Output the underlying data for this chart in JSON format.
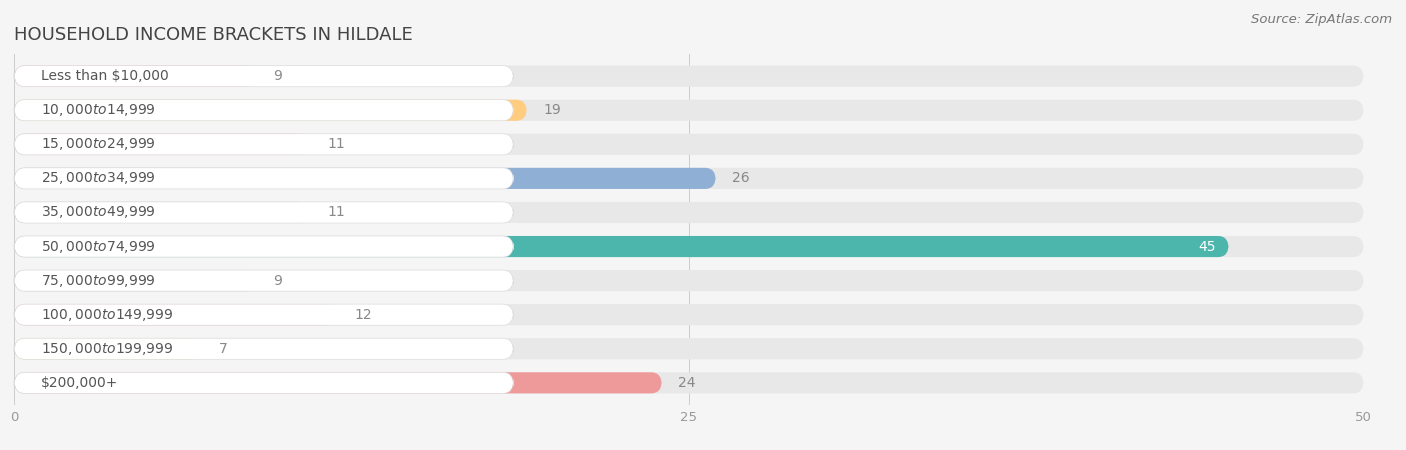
{
  "title": "HOUSEHOLD INCOME BRACKETS IN HILDALE",
  "source": "Source: ZipAtlas.com",
  "categories": [
    "Less than $10,000",
    "$10,000 to $14,999",
    "$15,000 to $24,999",
    "$25,000 to $34,999",
    "$35,000 to $49,999",
    "$50,000 to $74,999",
    "$75,000 to $99,999",
    "$100,000 to $149,999",
    "$150,000 to $199,999",
    "$200,000+"
  ],
  "values": [
    9,
    19,
    11,
    26,
    11,
    45,
    9,
    12,
    7,
    24
  ],
  "colors": [
    "#f48fb1",
    "#ffcc80",
    "#f48fb1",
    "#90afd4",
    "#ce93d8",
    "#4db6ac",
    "#b39ddb",
    "#f48fb1",
    "#ffcc80",
    "#ef9a9a"
  ],
  "xlim": [
    0,
    50
  ],
  "xticks": [
    0,
    25,
    50
  ],
  "background_color": "#f5f5f5",
  "bar_bg_color": "#e8e8e8",
  "title_color": "#444444",
  "title_fontsize": 13,
  "source_fontsize": 9.5,
  "label_fontsize": 10,
  "value_fontsize": 10,
  "value_color_inside": "#ffffff",
  "value_color_outside": "#888888",
  "label_color": "#555555",
  "pill_color": "#ffffff"
}
